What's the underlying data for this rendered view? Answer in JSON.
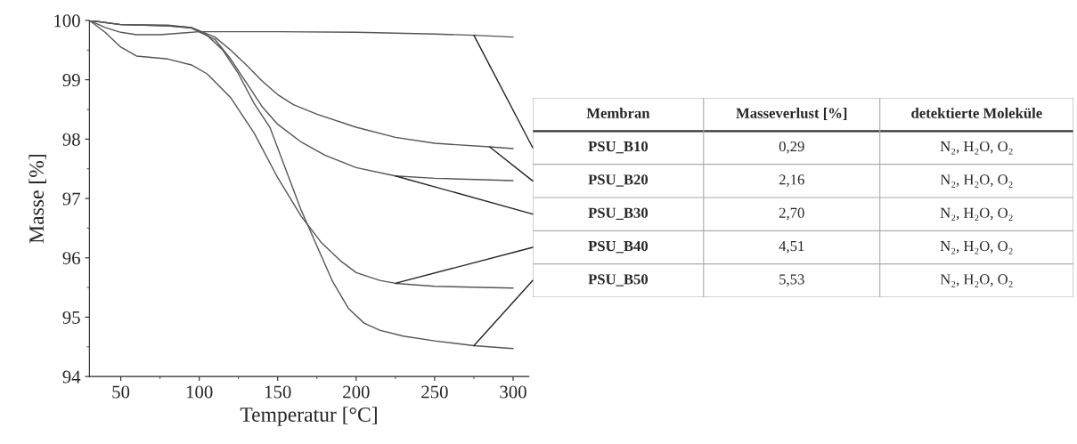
{
  "chart_data": {
    "type": "line",
    "xlabel": "Temperatur [°C]",
    "ylabel": "Masse [%]",
    "xlim": [
      30,
      310
    ],
    "ylim": [
      94,
      100
    ],
    "xticks": [
      50,
      100,
      150,
      200,
      250,
      300
    ],
    "yticks": [
      94,
      95,
      96,
      97,
      98,
      99,
      100
    ],
    "grid": false,
    "legend": false,
    "marker": "none",
    "line_style": "solid",
    "series": [
      {
        "name": "PSU_B10",
        "color": "#555555",
        "x": [
          30,
          40,
          50,
          60,
          75,
          90,
          100,
          150,
          200,
          250,
          275,
          300
        ],
        "values": [
          100,
          99.88,
          99.8,
          99.76,
          99.76,
          99.79,
          99.81,
          99.81,
          99.8,
          99.77,
          99.75,
          99.72
        ]
      },
      {
        "name": "PSU_B20",
        "color": "#555555",
        "x": [
          30,
          50,
          80,
          95,
          110,
          120,
          130,
          140,
          150,
          160,
          175,
          200,
          225,
          250,
          285,
          300
        ],
        "values": [
          100,
          99.93,
          99.91,
          99.88,
          99.72,
          99.5,
          99.25,
          98.98,
          98.75,
          98.58,
          98.42,
          98.2,
          98.03,
          97.93,
          97.87,
          97.84
        ]
      },
      {
        "name": "PSU_B30",
        "color": "#555555",
        "x": [
          30,
          50,
          80,
          95,
          110,
          120,
          130,
          140,
          150,
          165,
          180,
          200,
          225,
          250,
          300
        ],
        "values": [
          100,
          99.93,
          99.91,
          99.87,
          99.68,
          99.35,
          98.95,
          98.55,
          98.25,
          97.95,
          97.73,
          97.52,
          97.38,
          97.34,
          97.3
        ]
      },
      {
        "name": "PSU_B40",
        "color": "#555555",
        "x": [
          30,
          40,
          50,
          60,
          80,
          95,
          105,
          120,
          135,
          150,
          165,
          178,
          190,
          200,
          215,
          225,
          250,
          300
        ],
        "values": [
          100,
          99.8,
          99.55,
          99.4,
          99.35,
          99.25,
          99.1,
          98.7,
          98.1,
          97.35,
          96.7,
          96.25,
          95.95,
          95.75,
          95.62,
          95.57,
          95.52,
          95.49
        ]
      },
      {
        "name": "PSU_B50",
        "color": "#555555",
        "x": [
          30,
          50,
          80,
          95,
          105,
          115,
          125,
          135,
          145,
          155,
          165,
          175,
          185,
          195,
          205,
          215,
          230,
          250,
          275,
          300
        ],
        "values": [
          100,
          99.93,
          99.92,
          99.88,
          99.75,
          99.5,
          99.1,
          98.6,
          98.2,
          97.5,
          96.8,
          96.2,
          95.6,
          95.15,
          94.9,
          94.78,
          94.68,
          94.6,
          94.52,
          94.47
        ]
      }
    ],
    "annotations": [
      "Membran",
      "Masseverlust [%]",
      "detektierte Moleküle",
      "0,29",
      "N₂, H₂O, O₂",
      "2,16",
      "N₂, H₂O, O₂",
      "2,70",
      "N₂, H₂O, O₂",
      "4,51",
      "N₂, H₂O, O₂",
      "5,53",
      "N₂, H₂O, O₂"
    ]
  }
}
